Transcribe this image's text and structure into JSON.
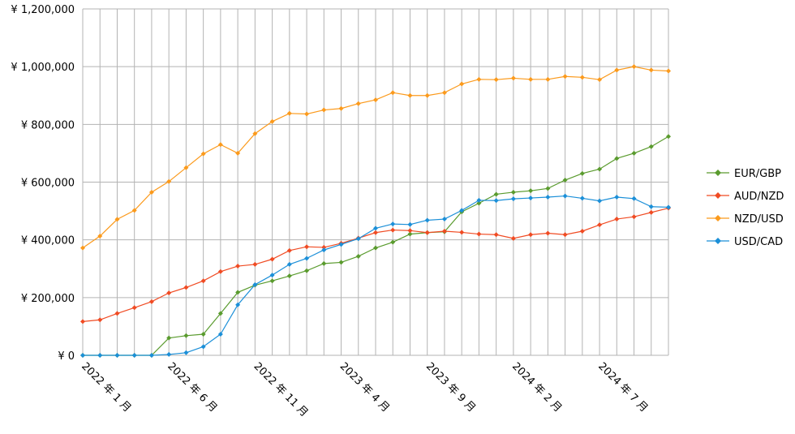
{
  "chart_data": {
    "type": "line",
    "title": "",
    "xlabel": "",
    "ylabel": "",
    "ylim": [
      0,
      1200000
    ],
    "y_ticks": [
      "¥ 0",
      "¥ 200,000",
      "¥ 400,000",
      "¥ 600,000",
      "¥ 800,000",
      "¥ 1,000,000",
      "¥ 1,200,000"
    ],
    "x_tick_labels": [
      "2022 年 1 月",
      "2022 年 6 月",
      "2022 年 11 月",
      "2023 年 4 月",
      "2023 年 9 月",
      "2024 年 2 月",
      "2024 年 7 月"
    ],
    "grid": true,
    "legend_position": "right",
    "x": [
      "2022-01",
      "2022-02",
      "2022-03",
      "2022-04",
      "2022-05",
      "2022-06",
      "2022-07",
      "2022-08",
      "2022-09",
      "2022-10",
      "2022-11",
      "2022-12",
      "2023-01",
      "2023-02",
      "2023-03",
      "2023-04",
      "2023-05",
      "2023-06",
      "2023-07",
      "2023-08",
      "2023-09",
      "2023-10",
      "2023-11",
      "2023-12",
      "2024-01",
      "2024-02",
      "2024-03",
      "2024-04",
      "2024-05",
      "2024-06",
      "2024-07",
      "2024-08",
      "2024-09",
      "2024-10",
      "2024-11"
    ],
    "series": [
      {
        "name": "EUR/GBP",
        "color": "#5a9b2e",
        "values": [
          0,
          0,
          0,
          0,
          0,
          60000,
          68000,
          73000,
          145000,
          218000,
          243000,
          258000,
          275000,
          293000,
          318000,
          322000,
          343000,
          372000,
          392000,
          420000,
          425000,
          428000,
          497000,
          527000,
          558000,
          565000,
          570000,
          578000,
          607000,
          630000,
          645000,
          682000,
          700000,
          723000,
          758000
        ]
      },
      {
        "name": "AUD/NZD",
        "color": "#f04b23",
        "values": [
          117000,
          123000,
          145000,
          165000,
          186000,
          216000,
          235000,
          258000,
          290000,
          309000,
          315000,
          333000,
          363000,
          376000,
          374000,
          388000,
          406000,
          425000,
          434000,
          432000,
          425000,
          430000,
          426000,
          420000,
          418000,
          405000,
          418000,
          423000,
          418000,
          430000,
          452000,
          472000,
          480000,
          495000,
          510000
        ]
      },
      {
        "name": "NZD/USD",
        "color": "#fb9a1c",
        "values": [
          372000,
          413000,
          471000,
          502000,
          565000,
          602000,
          650000,
          698000,
          730000,
          700000,
          768000,
          810000,
          838000,
          836000,
          850000,
          855000,
          872000,
          885000,
          910000,
          900000,
          900000,
          910000,
          940000,
          956000,
          955000,
          960000,
          956000,
          956000,
          966000,
          963000,
          955000,
          988000,
          1000000,
          988000,
          985000
        ]
      },
      {
        "name": "USD/CAD",
        "color": "#1b8fd8",
        "values": [
          0,
          0,
          0,
          0,
          0,
          3000,
          9000,
          30000,
          73000,
          175000,
          245000,
          278000,
          315000,
          336000,
          365000,
          384000,
          404000,
          440000,
          455000,
          453000,
          468000,
          472000,
          502000,
          537000,
          536000,
          542000,
          545000,
          548000,
          552000,
          544000,
          535000,
          548000,
          543000,
          515000,
          513000
        ]
      }
    ]
  }
}
